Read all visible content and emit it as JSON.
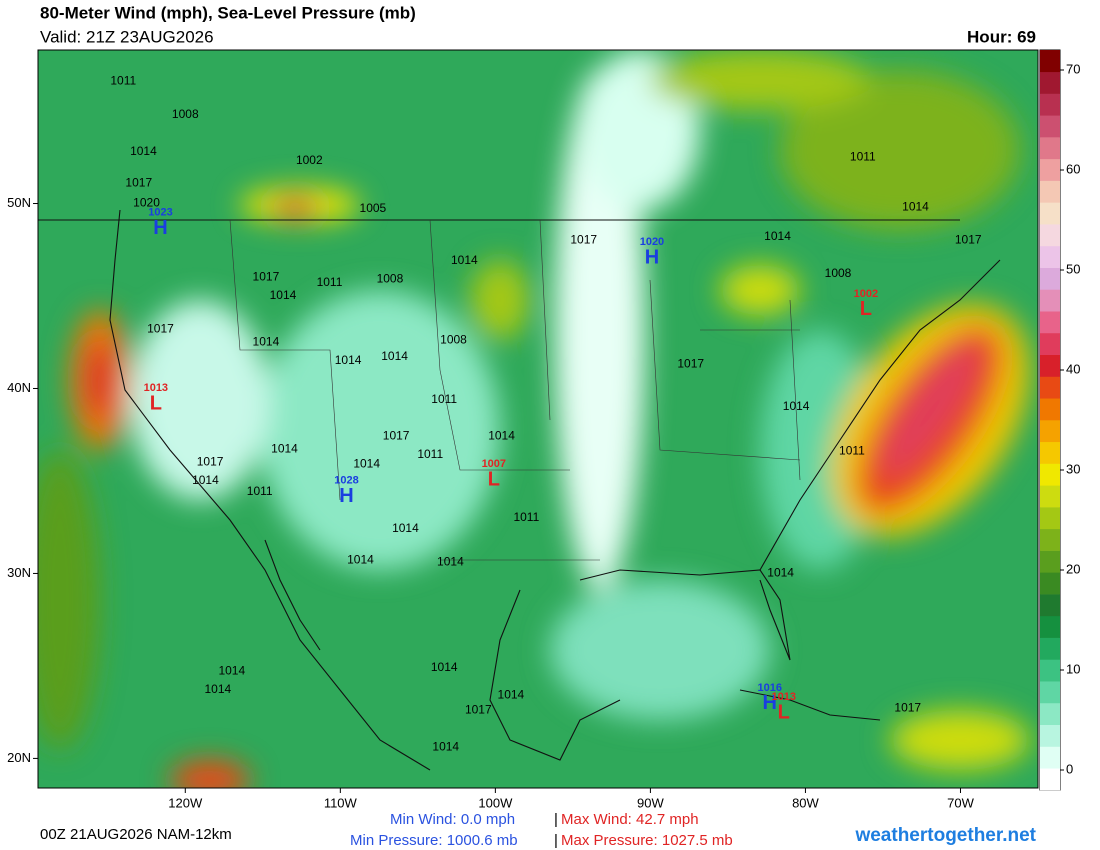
{
  "header": {
    "title": "80-Meter Wind (mph), Sea-Level Pressure (mb)",
    "valid": "Valid: 21Z 23AUG2026",
    "hour": "Hour: 69"
  },
  "map": {
    "xlim": [
      -129.5,
      -65
    ],
    "ylim": [
      18.4,
      58.3
    ],
    "xticks": [
      {
        "value": -120,
        "label": "120W"
      },
      {
        "value": -110,
        "label": "110W"
      },
      {
        "value": -100,
        "label": "100W"
      },
      {
        "value": -90,
        "label": "90W"
      },
      {
        "value": -80,
        "label": "80W"
      },
      {
        "value": -70,
        "label": "70W"
      }
    ],
    "yticks": [
      {
        "value": 50,
        "label": "50N"
      },
      {
        "value": 40,
        "label": "40N"
      },
      {
        "value": 30,
        "label": "30N"
      },
      {
        "value": 20,
        "label": "20N"
      }
    ]
  },
  "colorbar": {
    "lim": [
      -2,
      72
    ],
    "ticks": [
      0,
      10,
      20,
      30,
      40,
      50,
      60,
      70
    ],
    "colors": [
      "#ffffff",
      "#e0fff4",
      "#b8f5e0",
      "#8ce8c4",
      "#5fd6a4",
      "#3cc282",
      "#22a95e",
      "#15903f",
      "#1f7a2f",
      "#3a8a22",
      "#5a9e1e",
      "#7db21a",
      "#a4c814",
      "#cddc10",
      "#f0e800",
      "#f5c800",
      "#f5a200",
      "#f07800",
      "#e84a14",
      "#d8202a",
      "#e03c5c",
      "#e8638a",
      "#e48fb8",
      "#dcaadc",
      "#ecc4e8",
      "#f5d8e0",
      "#f6e0c8",
      "#f4c8b4",
      "#eea0a0",
      "#e0788a",
      "#cc5070",
      "#b83050",
      "#a01830",
      "#800000"
    ]
  },
  "symbol_colors": {
    "H": "#1a3ee0",
    "L": "#e02424"
  },
  "centers": [
    {
      "symbol": "H",
      "value": 1023,
      "lon": -121.6,
      "lat": 48.7
    },
    {
      "symbol": "H",
      "value": 1020,
      "lon": -89.9,
      "lat": 47.1
    },
    {
      "symbol": "L",
      "value": 1002,
      "lon": -76.1,
      "lat": 44.3
    },
    {
      "symbol": "L",
      "value": 1013,
      "lon": -121.9,
      "lat": 39.2
    },
    {
      "symbol": "L",
      "value": 1007,
      "lon": -100.1,
      "lat": 35.1
    },
    {
      "symbol": "H",
      "value": 1028,
      "lon": -109.6,
      "lat": 34.2
    },
    {
      "symbol": "H",
      "value": 1016,
      "lon": -82.3,
      "lat": 23.0
    },
    {
      "symbol": "L",
      "value": 1013,
      "lon": -81.4,
      "lat": 22.5
    }
  ],
  "isobar_labels": [
    {
      "value": 1011,
      "lon": -124.0,
      "lat": 56.6
    },
    {
      "value": 1008,
      "lon": -120.0,
      "lat": 54.8
    },
    {
      "value": 1014,
      "lon": -122.7,
      "lat": 52.8
    },
    {
      "value": 1017,
      "lon": -123.0,
      "lat": 51.1
    },
    {
      "value": 1020,
      "lon": -122.5,
      "lat": 50.0
    },
    {
      "value": 1002,
      "lon": -112.0,
      "lat": 52.3
    },
    {
      "value": 1005,
      "lon": -107.9,
      "lat": 49.7
    },
    {
      "value": 1017,
      "lon": -94.3,
      "lat": 48.0
    },
    {
      "value": 1014,
      "lon": -102.0,
      "lat": 46.9
    },
    {
      "value": 1008,
      "lon": -106.8,
      "lat": 45.9
    },
    {
      "value": 1017,
      "lon": -114.8,
      "lat": 46.0
    },
    {
      "value": 1014,
      "lon": -113.7,
      "lat": 45.0
    },
    {
      "value": 1011,
      "lon": -110.7,
      "lat": 45.7
    },
    {
      "value": 1017,
      "lon": -121.6,
      "lat": 43.2
    },
    {
      "value": 1014,
      "lon": -114.8,
      "lat": 42.5
    },
    {
      "value": 1014,
      "lon": -109.5,
      "lat": 41.5
    },
    {
      "value": 1014,
      "lon": -106.5,
      "lat": 41.7
    },
    {
      "value": 1008,
      "lon": -102.7,
      "lat": 42.6
    },
    {
      "value": 1011,
      "lon": -103.3,
      "lat": 39.4
    },
    {
      "value": 1017,
      "lon": -106.4,
      "lat": 37.4
    },
    {
      "value": 1014,
      "lon": -99.6,
      "lat": 37.4
    },
    {
      "value": 1014,
      "lon": -113.6,
      "lat": 36.7
    },
    {
      "value": 1014,
      "lon": -108.3,
      "lat": 35.9
    },
    {
      "value": 1011,
      "lon": -104.2,
      "lat": 36.4
    },
    {
      "value": 1017,
      "lon": -118.4,
      "lat": 36.0
    },
    {
      "value": 1014,
      "lon": -118.7,
      "lat": 35.0
    },
    {
      "value": 1011,
      "lon": -115.2,
      "lat": 34.4
    },
    {
      "value": 1014,
      "lon": -105.8,
      "lat": 32.4
    },
    {
      "value": 1011,
      "lon": -98.0,
      "lat": 33.0
    },
    {
      "value": 1014,
      "lon": -108.7,
      "lat": 30.7
    },
    {
      "value": 1014,
      "lon": -102.9,
      "lat": 30.6
    },
    {
      "value": 1014,
      "lon": -81.8,
      "lat": 48.2
    },
    {
      "value": 1008,
      "lon": -77.9,
      "lat": 46.2
    },
    {
      "value": 1011,
      "lon": -76.3,
      "lat": 52.5
    },
    {
      "value": 1014,
      "lon": -72.9,
      "lat": 49.8
    },
    {
      "value": 1017,
      "lon": -69.5,
      "lat": 48.0
    },
    {
      "value": 1017,
      "lon": -87.4,
      "lat": 41.3
    },
    {
      "value": 1014,
      "lon": -80.6,
      "lat": 39.0
    },
    {
      "value": 1011,
      "lon": -77.0,
      "lat": 36.6
    },
    {
      "value": 1014,
      "lon": -81.6,
      "lat": 30.0
    },
    {
      "value": 1014,
      "lon": -117.0,
      "lat": 24.7
    },
    {
      "value": 1014,
      "lon": -117.9,
      "lat": 23.7
    },
    {
      "value": 1014,
      "lon": -103.3,
      "lat": 24.9
    },
    {
      "value": 1014,
      "lon": -99.0,
      "lat": 23.4
    },
    {
      "value": 1017,
      "lon": -101.1,
      "lat": 22.6
    },
    {
      "value": 1014,
      "lon": -103.2,
      "lat": 20.6
    },
    {
      "value": 1017,
      "lon": -73.4,
      "lat": 22.7
    }
  ],
  "footer": {
    "run": "00Z 21AUG2026 NAM-12km",
    "min_wind": "Min Wind:   0.0 mph",
    "separator": "|",
    "max_wind": "Max Wind:  42.7 mph",
    "min_pressure": "Min Pressure: 1000.6 mb",
    "max_pressure": "Max Pressure: 1027.5 mb",
    "source": "weathertogether.net"
  }
}
